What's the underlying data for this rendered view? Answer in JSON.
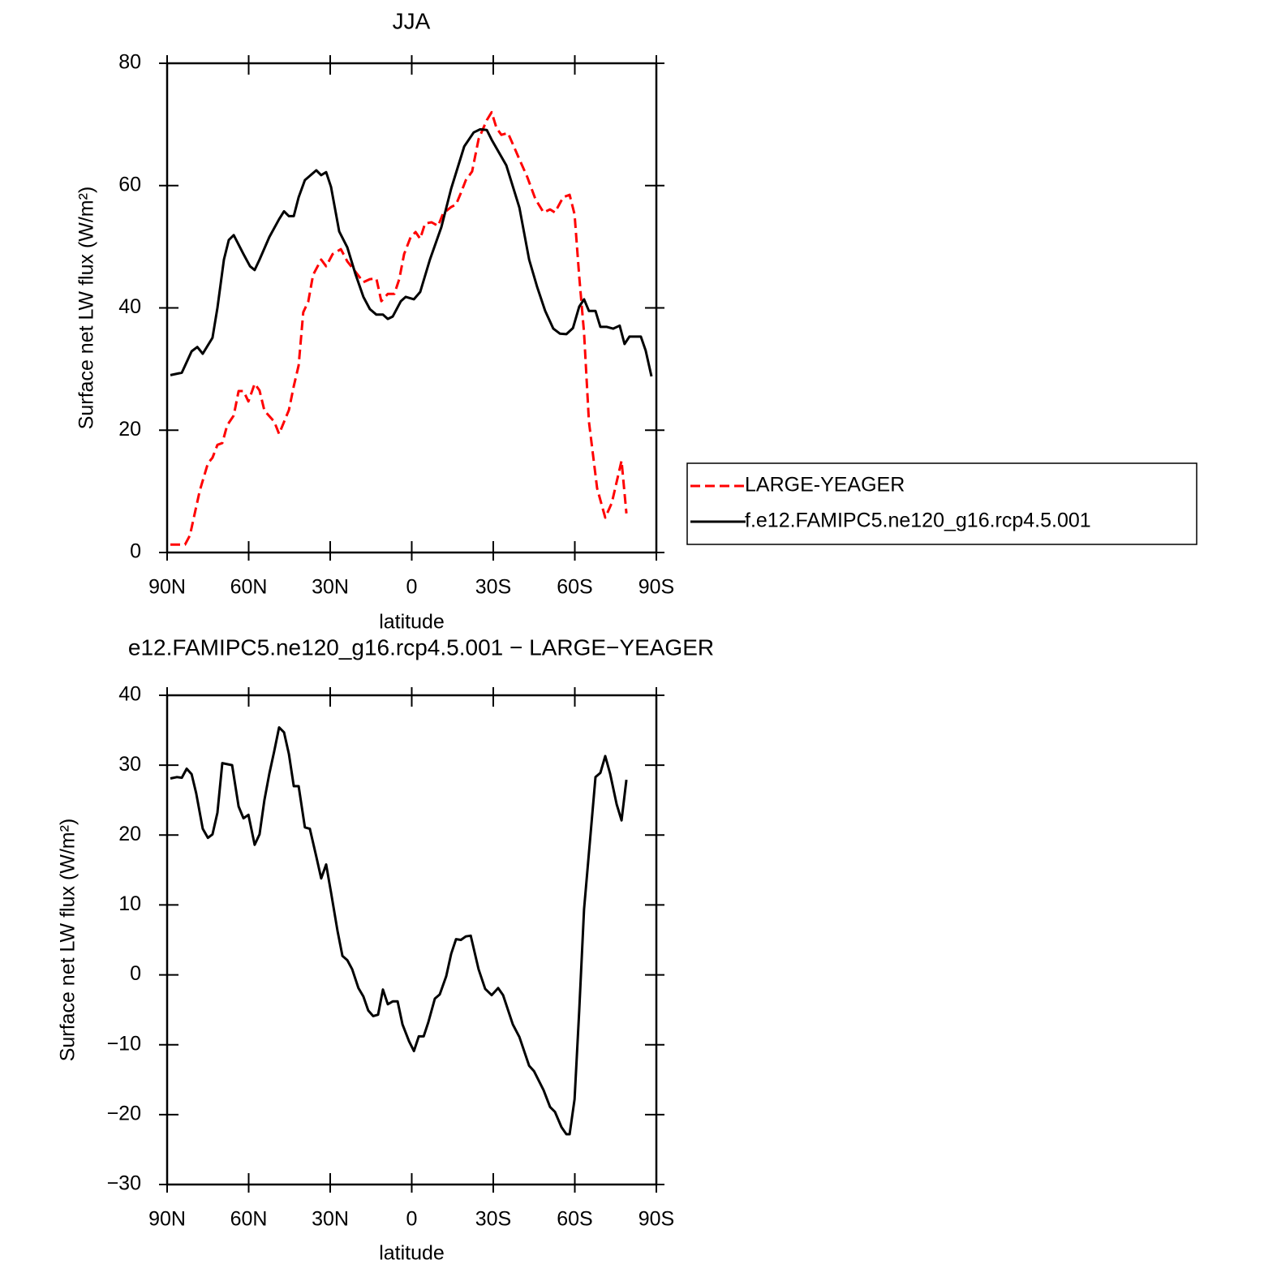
{
  "chart_data": [
    {
      "type": "line",
      "title": "JJA",
      "xlabel": "latitude",
      "ylabel": "Surface net LW flux (W/m²)",
      "xlim": [
        90,
        -90
      ],
      "ylim": [
        0,
        80
      ],
      "xticks": [
        {
          "value": 90,
          "label": "90N"
        },
        {
          "value": 60,
          "label": "60N"
        },
        {
          "value": 30,
          "label": "30N"
        },
        0,
        {
          "value": -30,
          "label": "30S"
        },
        {
          "value": -60,
          "label": "60S"
        },
        {
          "value": -90,
          "label": "90S"
        }
      ],
      "yticks": [
        0,
        20,
        40,
        60,
        80
      ],
      "legend": "right",
      "series": [
        {
          "name": "LARGE-YEAGER",
          "color": "#ff0000",
          "linestyle": "dashed",
          "x": [
            88.8,
            83.4,
            81.6,
            78,
            75,
            73.3,
            71.5,
            69.7,
            67.9,
            65.5,
            63.7,
            61.9,
            60.1,
            57.8,
            56,
            54.2,
            50.6,
            48.8,
            45.2,
            43.4,
            41.6,
            39.9,
            38.1,
            36.3,
            33.3,
            31.5,
            29.1,
            26.1,
            23.7,
            20.7,
            17.8,
            15.4,
            13,
            11.2,
            8.8,
            6.4,
            4.6,
            2.8,
            0.4,
            -1.4,
            -3.1,
            -4.9,
            -7.3,
            -9.7,
            -11.5,
            -14.5,
            -16.3,
            -18.1,
            -19.9,
            -22.2,
            -24.6,
            -27.6,
            -29.4,
            -31.2,
            -33,
            -35.4,
            -39.6,
            -42.5,
            -45.5,
            -48.5,
            -50.9,
            -52.7,
            -55.7,
            -58.1,
            -59.9,
            -61.6,
            -63.4,
            -65.2,
            -68.2,
            -71.2,
            -73.6,
            -77.2,
            -79
          ],
          "values": [
            1.3,
            1.3,
            2.8,
            10.1,
            14.6,
            15.5,
            17.6,
            17.9,
            20.8,
            22.4,
            26.4,
            26.4,
            24.7,
            27.6,
            26.5,
            23.2,
            21.4,
            19.4,
            23.3,
            27.2,
            30.6,
            39.3,
            41,
            45.4,
            47.9,
            46.8,
            48.8,
            49.6,
            47.6,
            45.9,
            44.2,
            44.7,
            44.8,
            41.1,
            42.3,
            42.3,
            44.7,
            48.8,
            51.6,
            52.4,
            51.3,
            53.8,
            54,
            53.4,
            55.4,
            56.5,
            56.9,
            58.8,
            60.9,
            62.3,
            67.6,
            70.7,
            72,
            69.4,
            68.3,
            68.6,
            64.3,
            61.4,
            57.8,
            55.6,
            56.1,
            55.6,
            58.1,
            58.5,
            55.3,
            45.2,
            35.9,
            21.4,
            10.5,
            5.7,
            8.1,
            15,
            6.4
          ]
        },
        {
          "name": "f.e12.FAMIPC5.ne120_g16.rcp4.5.001",
          "color": "#000000",
          "linestyle": "solid",
          "x": [
            88.8,
            84.6,
            81,
            78.9,
            76.9,
            73.3,
            71.5,
            69.1,
            67.3,
            65.5,
            61.9,
            59.5,
            57.8,
            56,
            52.4,
            48.8,
            47,
            45.2,
            43.4,
            41.6,
            39.3,
            35.1,
            33.3,
            31.5,
            29.7,
            26.7,
            23.7,
            20.7,
            17.8,
            15.4,
            13,
            10.6,
            8.8,
            7,
            4,
            2.2,
            -0.8,
            -3.1,
            -6.7,
            -10.9,
            -14.5,
            -19.3,
            -22.8,
            -25.2,
            -27.6,
            -29.4,
            -34.8,
            -39.6,
            -43.2,
            -46.1,
            -49.1,
            -52.1,
            -54.5,
            -56.9,
            -59.3,
            -61.6,
            -63.4,
            -65.2,
            -67.6,
            -69.4,
            -71.8,
            -74.1,
            -76.5,
            -78.3,
            -80.1,
            -84.3,
            -86.1,
            -88.2
          ],
          "values": [
            29,
            29.4,
            32.9,
            33.6,
            32.5,
            35.1,
            40,
            47.9,
            51.1,
            51.9,
            48.8,
            46.8,
            46.2,
            47.9,
            51.6,
            54.5,
            55.8,
            55,
            55,
            58.1,
            60.9,
            62.5,
            61.7,
            62.2,
            59.8,
            52.5,
            49.9,
            45.5,
            41.8,
            39.8,
            38.9,
            38.9,
            38.2,
            38.6,
            41.1,
            41.8,
            41.4,
            42.6,
            47.9,
            53.2,
            59.5,
            66.4,
            68.7,
            69.2,
            69.1,
            67.5,
            63.3,
            56.4,
            47.9,
            43.5,
            39.5,
            36.6,
            35.8,
            35.7,
            36.7,
            40.2,
            41.4,
            39.5,
            39.5,
            36.9,
            36.9,
            36.6,
            37.1,
            34.1,
            35.3,
            35.3,
            33,
            28.8
          ]
        }
      ]
    },
    {
      "type": "line",
      "title": "e12.FAMIPC5.ne120_g16.rcp4.5.001 − LARGE−YEAGER",
      "xlabel": "latitude",
      "ylabel": "Surface net LW flux (W/m²)",
      "xlim": [
        90,
        -90
      ],
      "ylim": [
        -30,
        40
      ],
      "xticks": [
        {
          "value": 90,
          "label": "90N"
        },
        {
          "value": 60,
          "label": "60N"
        },
        {
          "value": 30,
          "label": "30N"
        },
        0,
        {
          "value": -30,
          "label": "30S"
        },
        {
          "value": -60,
          "label": "60S"
        },
        {
          "value": -90,
          "label": "90S"
        }
      ],
      "yticks": [
        {
          "value": -30,
          "label": "−30"
        },
        {
          "value": -20,
          "label": "−20"
        },
        {
          "value": -10,
          "label": "−10"
        },
        0,
        10,
        20,
        30,
        40
      ],
      "color": "#000000",
      "linestyle": "solid",
      "x": [
        88.8,
        86.4,
        84.6,
        82.8,
        81,
        79.3,
        76.9,
        75,
        73.3,
        71.5,
        69.7,
        66.1,
        63.7,
        61.9,
        60.1,
        57.8,
        56,
        54.2,
        52.4,
        50.6,
        48.8,
        47,
        45.2,
        43.4,
        41.6,
        39.3,
        37.5,
        35.1,
        33.3,
        31.5,
        29.7,
        27.3,
        25.5,
        23.7,
        21.9,
        19.6,
        17.8,
        16,
        14.2,
        12.4,
        10.6,
        8.8,
        7,
        5.2,
        3.4,
        1,
        -0.8,
        -2.6,
        -4.4,
        -6.1,
        -8.5,
        -10.3,
        -12.7,
        -14.5,
        -16.3,
        -18.1,
        -19.9,
        -21.7,
        -24.6,
        -27,
        -29.4,
        -31.8,
        -33.6,
        -37.2,
        -39.6,
        -43.2,
        -45,
        -48.5,
        -50.9,
        -52.7,
        -55.1,
        -56.9,
        -58.1,
        -59.9,
        -61.6,
        -63.4,
        -67.6,
        -69.4,
        -71.2,
        -73,
        -75.4,
        -77.2,
        -79
      ],
      "values": [
        28.1,
        28.3,
        28.2,
        29.5,
        28.7,
        26,
        20.9,
        19.6,
        20.1,
        23.2,
        30.3,
        30,
        24.1,
        22.4,
        22.9,
        18.6,
        20.1,
        25,
        28.8,
        32,
        35.4,
        34.7,
        31.6,
        27,
        27,
        21.1,
        20.9,
        16.9,
        13.8,
        15.8,
        11.8,
        6.3,
        2.7,
        2.1,
        0.8,
        -1.9,
        -3.1,
        -5.1,
        -5.9,
        -5.7,
        -2.1,
        -4.2,
        -3.8,
        -3.8,
        -7.1,
        -9.5,
        -10.9,
        -8.8,
        -8.8,
        -6.8,
        -3.4,
        -2.8,
        -0.2,
        3,
        5.1,
        5,
        5.5,
        5.6,
        0.8,
        -2,
        -2.9,
        -1.9,
        -2.9,
        -7.1,
        -8.9,
        -13,
        -13.8,
        -16.5,
        -18.9,
        -19.6,
        -21.8,
        -22.8,
        -22.8,
        -17.8,
        -5.2,
        9.4,
        28.3,
        28.9,
        31.3,
        28.8,
        24.4,
        22.1,
        27.9
      ]
    }
  ]
}
